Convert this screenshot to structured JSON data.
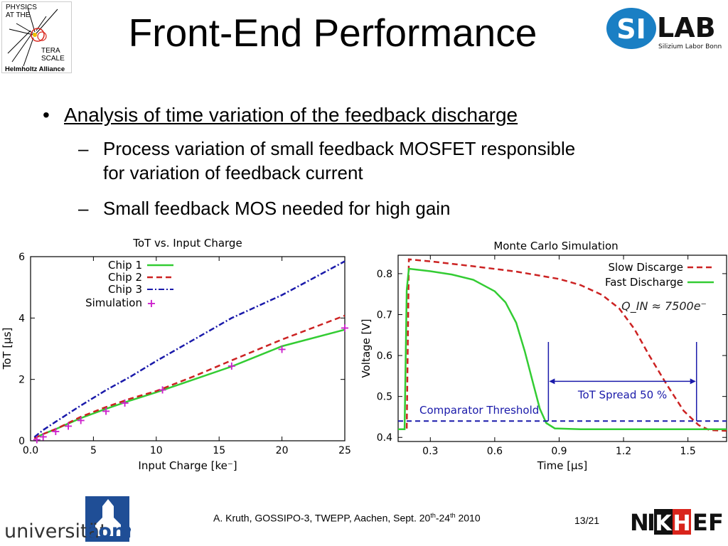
{
  "slide": {
    "title": "Front-End Performance",
    "bullet_main": "Analysis of time variation of the feedback discharge",
    "bullet_symbol": "•",
    "sub_dash": "–",
    "sub1_line1": "Process variation of small feedback MOSFET responsible",
    "sub1_line2": "for variation of feedback current",
    "sub2": "Small feedback MOS needed for high gain",
    "footer_pre": "A. Kruth, GOSSIPO-3, TWEPP, Aachen, Sept. 20",
    "footer_sup1": "th",
    "footer_mid": "-24",
    "footer_sup2": "th",
    "footer_post": " 2010",
    "page": "13/21"
  },
  "logos": {
    "terascale_top": "PHYSICS\nAT THE",
    "terascale_mid": "TERA\nSCALE",
    "terascale_bottom": "Helmholtz Alliance",
    "silab_si": "SI",
    "silab_lab": "LAB",
    "silab_sub": "Silizium Labor Bonn",
    "bonn_text_a": "universität",
    "bonn_text_b": "bonn",
    "nikhef_n": "N",
    "nikhef_i": "I",
    "nikhef_k": "K",
    "nikhef_h": "H",
    "nikhef_e": "E",
    "nikhef_f": "F",
    "colors": {
      "silab_blue": "#1a7fc4",
      "bonn_blue": "#1f4e96",
      "nikhef_red": "#d9241b"
    }
  },
  "chart_data": [
    {
      "type": "line",
      "title": "ToT vs. Input Charge",
      "xlabel": "Input Charge [ke⁻]",
      "ylabel": "ToT [µs]",
      "xlim": [
        0,
        25
      ],
      "ylim": [
        0,
        6
      ],
      "xticks": [
        "0.0",
        "5",
        "10",
        "15",
        "20",
        "25"
      ],
      "xtick_values": [
        0,
        5,
        10,
        15,
        20,
        25
      ],
      "yticks": [
        "0",
        "2",
        "4",
        "6"
      ],
      "ytick_values": [
        0,
        2,
        4,
        6
      ],
      "series": [
        {
          "name": "Chip 1",
          "color": "#33cc33",
          "dash": "",
          "x": [
            0.3,
            1,
            2,
            3,
            4,
            6,
            8,
            10,
            13,
            16,
            20,
            25
          ],
          "y": [
            0.08,
            0.22,
            0.38,
            0.56,
            0.74,
            1.04,
            1.32,
            1.58,
            2.0,
            2.42,
            3.08,
            3.62
          ]
        },
        {
          "name": "Chip 2",
          "color": "#cc2222",
          "dash": "8,5",
          "x": [
            0.3,
            1,
            2,
            3,
            4,
            6,
            8,
            10,
            13,
            16,
            20,
            25
          ],
          "y": [
            0.08,
            0.22,
            0.38,
            0.58,
            0.78,
            1.1,
            1.38,
            1.62,
            2.1,
            2.62,
            3.3,
            4.08
          ]
        },
        {
          "name": "Chip 3",
          "color": "#1a1aaa",
          "dash": "8,3,2,3",
          "x": [
            0.3,
            1,
            2,
            4,
            6,
            8,
            10,
            13,
            16,
            20,
            25
          ],
          "y": [
            0.12,
            0.35,
            0.62,
            1.15,
            1.65,
            2.1,
            2.6,
            3.3,
            4.0,
            4.75,
            5.85
          ]
        }
      ],
      "simulation": {
        "name": "Simulation",
        "color": "#cc22cc",
        "x": [
          0.5,
          1,
          2,
          3,
          4,
          6,
          7.5,
          10.5,
          16,
          20,
          25
        ],
        "y": [
          0.06,
          0.15,
          0.32,
          0.5,
          0.68,
          0.98,
          1.25,
          1.68,
          2.45,
          3.0,
          3.7
        ]
      },
      "legend_position": "top-right"
    },
    {
      "type": "line",
      "title": "Monte Carlo Simulation",
      "xlabel": "Time [µs]",
      "ylabel": "Voltage [V]",
      "xlim": [
        0.15,
        1.68
      ],
      "ylim": [
        0.39,
        0.845
      ],
      "xticks": [
        "0.3",
        "0.6",
        "0.9",
        "1.2",
        "1.5"
      ],
      "xtick_values": [
        0.3,
        0.6,
        0.9,
        1.2,
        1.5
      ],
      "yticks": [
        "0.4",
        "0.5",
        "0.6",
        "0.7",
        "0.8"
      ],
      "ytick_values": [
        0.4,
        0.5,
        0.6,
        0.7,
        0.8
      ],
      "series": [
        {
          "name": "Slow Discarge",
          "color": "#cc2222",
          "dash": "8,5",
          "x": [
            0.15,
            0.19,
            0.2,
            0.3,
            0.5,
            0.7,
            0.9,
            1.0,
            1.1,
            1.18,
            1.25,
            1.32,
            1.4,
            1.48,
            1.55,
            1.6,
            1.68
          ],
          "y": [
            0.42,
            0.42,
            0.835,
            0.83,
            0.818,
            0.805,
            0.787,
            0.772,
            0.748,
            0.715,
            0.665,
            0.6,
            0.53,
            0.465,
            0.43,
            0.418,
            0.416
          ]
        },
        {
          "name": "Fast Discharge",
          "color": "#33cc33",
          "dash": "",
          "x": [
            0.15,
            0.18,
            0.19,
            0.2,
            0.3,
            0.4,
            0.5,
            0.6,
            0.65,
            0.7,
            0.74,
            0.78,
            0.81,
            0.84,
            0.88,
            1.0,
            1.68
          ],
          "y": [
            0.42,
            0.42,
            0.76,
            0.812,
            0.806,
            0.798,
            0.785,
            0.757,
            0.73,
            0.68,
            0.61,
            0.53,
            0.47,
            0.435,
            0.422,
            0.42,
            0.42
          ]
        }
      ],
      "threshold": {
        "label": "Comparator Threshold",
        "value": 0.44,
        "color": "#1a1aaa"
      },
      "spread": {
        "label": "ToT Spread 50 %",
        "x_start": 0.85,
        "x_end": 1.54,
        "y": 0.537,
        "color": "#1a1aaa"
      },
      "annotation": "Q_IN ≈ 7500e⁻",
      "legend_position": "top-right"
    }
  ]
}
